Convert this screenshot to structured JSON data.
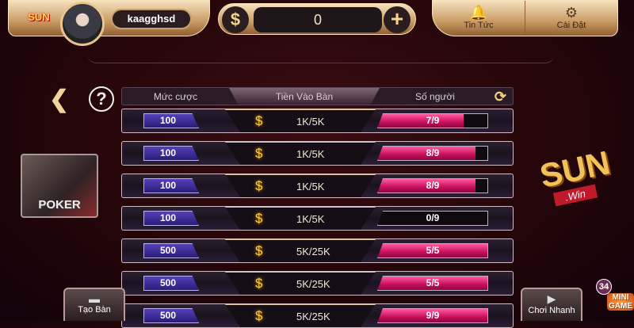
{
  "header": {
    "username": "kaagghsd",
    "balance": "0",
    "currency_icon": "dollar-icon",
    "add_icon": "plus-icon",
    "news_label": "Tin Tức",
    "settings_label": "Cài Đặt",
    "logo": "SUN Win"
  },
  "table_header": {
    "bet": "Mức cược",
    "entry": "Tiền Vào Bàn",
    "players": "Số người"
  },
  "rows": [
    {
      "bet": "100",
      "entry": "1K/5K",
      "players": "7/9",
      "fill": 0.78
    },
    {
      "bet": "100",
      "entry": "1K/5K",
      "players": "8/9",
      "fill": 0.89
    },
    {
      "bet": "100",
      "entry": "1K/5K",
      "players": "8/9",
      "fill": 0.89
    },
    {
      "bet": "100",
      "entry": "1K/5K",
      "players": "0/9",
      "fill": 0
    },
    {
      "bet": "500",
      "entry": "5K/25K",
      "players": "5/5",
      "fill": 1
    },
    {
      "bet": "500",
      "entry": "5K/25K",
      "players": "5/5",
      "fill": 1
    },
    {
      "bet": "500",
      "entry": "5K/25K",
      "players": "9/9",
      "fill": 1
    }
  ],
  "game": {
    "name": "POKER"
  },
  "brand": {
    "name": "SUN",
    "sub": ".Win"
  },
  "buttons": {
    "create_table": "Tạo Bàn",
    "quick_play": "Chơi Nhanh"
  },
  "minigame": {
    "badge": "34",
    "label": "MINI GAME"
  },
  "colors": {
    "accent_gold": "#c99a63",
    "player_fill": "#e0206f",
    "bet_badge": "#3f2ea0"
  }
}
